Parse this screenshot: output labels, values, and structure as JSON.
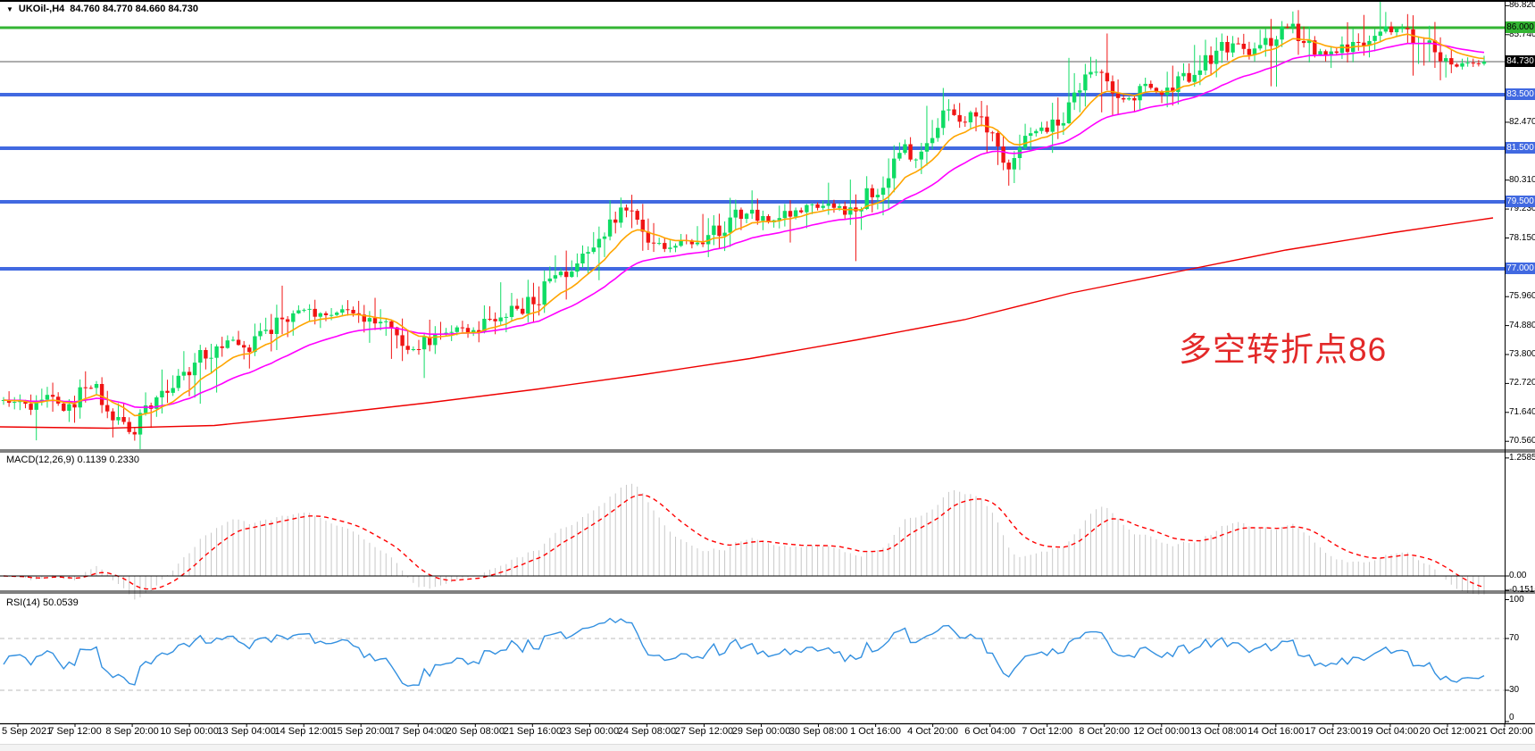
{
  "header": {
    "symbol": "UKOil-,H4",
    "ohlc": "84.760 84.770 84.660 84.730"
  },
  "colors": {
    "bull_candle": "#0fdc64",
    "bear_candle": "#f01414",
    "support_line_blue": "#4169e1",
    "resistance_line_green": "#33b533",
    "current_price_line": "#888888",
    "current_price_badge_bg": "#000000",
    "ma_fast_orange": "#ffa500",
    "ma_mid_magenta": "#ff00ff",
    "ma_slow_red": "#ee0000",
    "macd_histogram": "#c8c8c8",
    "macd_signal_red": "#ff0000",
    "rsi_line_blue": "#3390e0",
    "level_dashed_gray": "#bbbbbb",
    "panel_border": "#000000",
    "axis_text": "#000000",
    "annotation_red": "#e32929"
  },
  "chart_data": {
    "type": "candlestick",
    "symbol": "UKOil-",
    "timeframe": "H4",
    "ohlc": {
      "open": "84.760",
      "high": "84.770",
      "low": "84.660",
      "close": "84.730"
    },
    "y_axis_visible_range": {
      "max": 86.82,
      "min": 70.56
    },
    "price_axis_ticks": [
      "86.820",
      "85.740",
      "82.470",
      "80.310",
      "79.230",
      "78.150",
      "75.960",
      "74.880",
      "73.800",
      "72.720",
      "71.640",
      "70.560"
    ],
    "horizontal_levels": [
      {
        "label": "86.000",
        "value": 86.0,
        "style": "green"
      },
      {
        "label": "83.500",
        "value": 83.5,
        "style": "blue"
      },
      {
        "label": "81.500",
        "value": 81.5,
        "style": "blue"
      },
      {
        "label": "79.500",
        "value": 79.5,
        "style": "blue"
      },
      {
        "label": "77.000",
        "value": 77.0,
        "style": "blue"
      }
    ],
    "current_price": {
      "label": "84.730",
      "value": 84.73
    },
    "time_axis_labels": [
      "5 Sep 2021",
      "7 Sep 12:00",
      "8 Sep 20:00",
      "10 Sep 00:00",
      "13 Sep 04:00",
      "14 Sep 12:00",
      "15 Sep 20:00",
      "17 Sep 04:00",
      "20 Sep 08:00",
      "21 Sep 16:00",
      "23 Sep 00:00",
      "24 Sep 08:00",
      "27 Sep 12:00",
      "29 Sep 00:00",
      "30 Sep 08:00",
      "1 Oct 16:00",
      "4 Oct 20:00",
      "6 Oct 04:00",
      "7 Oct 12:00",
      "8 Oct 20:00",
      "12 Oct 00:00",
      "13 Oct 08:00",
      "14 Oct 16:00",
      "17 Oct 23:00",
      "19 Oct 04:00",
      "20 Oct 12:00",
      "21 Oct 20:00"
    ],
    "bar_count": 272,
    "price_path_estimate": [
      [
        0.0,
        72.1
      ],
      [
        0.018,
        71.85
      ],
      [
        0.03,
        72.3
      ],
      [
        0.04,
        71.7
      ],
      [
        0.052,
        72.25
      ],
      [
        0.062,
        72.55
      ],
      [
        0.072,
        71.6
      ],
      [
        0.08,
        71.0
      ],
      [
        0.088,
        70.9
      ],
      [
        0.098,
        71.7
      ],
      [
        0.112,
        72.6
      ],
      [
        0.126,
        73.4
      ],
      [
        0.14,
        73.9
      ],
      [
        0.154,
        74.3
      ],
      [
        0.166,
        74.05
      ],
      [
        0.178,
        74.6
      ],
      [
        0.19,
        75.25
      ],
      [
        0.2,
        75.6
      ],
      [
        0.212,
        75.3
      ],
      [
        0.228,
        75.45
      ],
      [
        0.244,
        75.15
      ],
      [
        0.258,
        74.9
      ],
      [
        0.27,
        74.3
      ],
      [
        0.279,
        74.05
      ],
      [
        0.292,
        74.55
      ],
      [
        0.305,
        74.8
      ],
      [
        0.318,
        74.65
      ],
      [
        0.332,
        75.1
      ],
      [
        0.346,
        75.45
      ],
      [
        0.36,
        75.9
      ],
      [
        0.374,
        76.55
      ],
      [
        0.386,
        77.3
      ],
      [
        0.396,
        77.95
      ],
      [
        0.406,
        78.55
      ],
      [
        0.416,
        79.15
      ],
      [
        0.426,
        78.95
      ],
      [
        0.436,
        78.25
      ],
      [
        0.446,
        77.7
      ],
      [
        0.456,
        78.1
      ],
      [
        0.468,
        77.9
      ],
      [
        0.48,
        78.3
      ],
      [
        0.492,
        78.9
      ],
      [
        0.504,
        79.15
      ],
      [
        0.516,
        78.8
      ],
      [
        0.528,
        79.05
      ],
      [
        0.542,
        79.3
      ],
      [
        0.556,
        79.45
      ],
      [
        0.568,
        79.1
      ],
      [
        0.58,
        79.55
      ],
      [
        0.592,
        80.1
      ],
      [
        0.601,
        81.0
      ],
      [
        0.608,
        81.7
      ],
      [
        0.614,
        81.0
      ],
      [
        0.621,
        81.6
      ],
      [
        0.63,
        82.3
      ],
      [
        0.64,
        82.9
      ],
      [
        0.648,
        82.45
      ],
      [
        0.656,
        82.9
      ],
      [
        0.664,
        82.2
      ],
      [
        0.671,
        81.5
      ],
      [
        0.678,
        80.7
      ],
      [
        0.686,
        81.55
      ],
      [
        0.695,
        82.4
      ],
      [
        0.704,
        82.1
      ],
      [
        0.713,
        82.6
      ],
      [
        0.722,
        83.1
      ],
      [
        0.731,
        83.95
      ],
      [
        0.739,
        84.45
      ],
      [
        0.747,
        83.85
      ],
      [
        0.755,
        83.35
      ],
      [
        0.763,
        83.55
      ],
      [
        0.772,
        83.85
      ],
      [
        0.782,
        83.6
      ],
      [
        0.791,
        84.0
      ],
      [
        0.801,
        84.35
      ],
      [
        0.812,
        84.8
      ],
      [
        0.823,
        85.2
      ],
      [
        0.833,
        85.5
      ],
      [
        0.843,
        85.05
      ],
      [
        0.853,
        85.4
      ],
      [
        0.862,
        85.8
      ],
      [
        0.871,
        86.05
      ],
      [
        0.88,
        85.35
      ],
      [
        0.89,
        85.0
      ],
      [
        0.9,
        85.1
      ],
      [
        0.91,
        85.3
      ],
      [
        0.92,
        85.55
      ],
      [
        0.93,
        85.75
      ],
      [
        0.94,
        86.05
      ],
      [
        0.95,
        85.8
      ],
      [
        0.96,
        85.4
      ],
      [
        0.97,
        84.75
      ],
      [
        0.98,
        84.5
      ],
      [
        0.99,
        84.65
      ],
      [
        1.0,
        84.73
      ]
    ],
    "slow_ma_path_estimate": [
      [
        0,
        71.1
      ],
      [
        120,
        71.05
      ],
      [
        240,
        71.15
      ],
      [
        360,
        71.55
      ],
      [
        480,
        72.0
      ],
      [
        600,
        72.5
      ],
      [
        720,
        73.05
      ],
      [
        840,
        73.65
      ],
      [
        960,
        74.35
      ],
      [
        1080,
        75.1
      ],
      [
        1200,
        76.1
      ],
      [
        1320,
        76.9
      ],
      [
        1440,
        77.7
      ],
      [
        1560,
        78.35
      ],
      [
        1672,
        78.9
      ]
    ]
  },
  "indicators": {
    "macd": {
      "label": "MACD(12,26,9)",
      "values": "0.1139 0.2330",
      "axis_labels": [
        "1.2585",
        "0.00",
        "-0.1516"
      ],
      "axis_values": [
        1.2585,
        0,
        -0.1516
      ]
    },
    "rsi": {
      "label": "RSI(14)",
      "value": "50.0539",
      "axis_labels": [
        "100",
        "70",
        "30",
        "0"
      ],
      "axis_values": [
        100,
        70,
        30,
        0
      ],
      "levels_dashed": [
        70,
        30
      ]
    }
  },
  "annotation": {
    "text": "多空转折点86"
  }
}
